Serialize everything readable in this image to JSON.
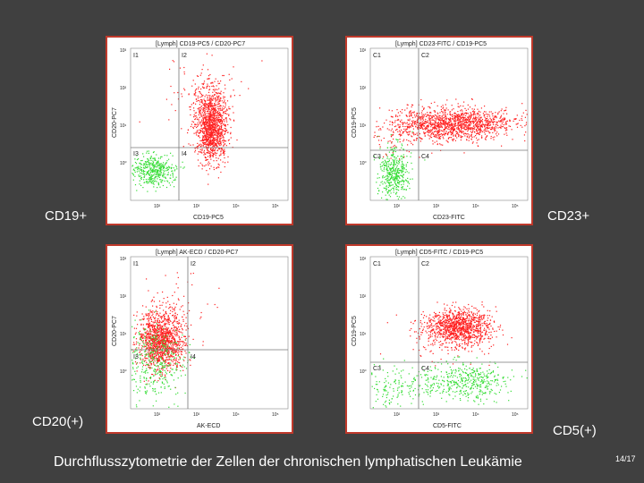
{
  "slide": {
    "caption": "Durchflusszytometrie der Zellen der chronischen lymphatischen Leukämie",
    "page_number": "14/17"
  },
  "colors": {
    "positive": "#ff2020",
    "negative": "#33dd33",
    "frame": "#c0392b",
    "background": "#404040"
  },
  "plots": [
    {
      "id": "cd19",
      "side_label": "CD19+",
      "header": "[Lymph] CD19-PC5 / CD20-PC7",
      "x_axis_label": "CD19-PC5",
      "y_axis_label": "CD20-PC7",
      "quadrants": [
        "I1",
        "I2",
        "I3",
        "I4"
      ],
      "x_ticks": [
        "10²",
        "10³",
        "10⁴",
        "10⁵"
      ],
      "y_ticks": [
        "10³",
        "10²",
        "10¹",
        "10⁰"
      ]
    },
    {
      "id": "cd23",
      "side_label": "CD23+",
      "header": "[Lymph] CD23-FITC / CD19-PC5",
      "x_axis_label": "CD23-FITC",
      "y_axis_label": "CD19-PC5",
      "quadrants": [
        "C1",
        "C2",
        "C3",
        "C4"
      ],
      "x_ticks": [
        "10²",
        "10³",
        "10⁴",
        "10⁵"
      ],
      "y_ticks": [
        "10³",
        "10²",
        "10¹",
        "10⁰"
      ]
    },
    {
      "id": "cd20",
      "side_label": "CD20(+)",
      "header": "[Lymph] AK-ECD / CD20-PC7",
      "x_axis_label": "AK-ECD",
      "y_axis_label": "CD20-PC7",
      "quadrants": [
        "I1",
        "I2",
        "I3",
        "I4"
      ],
      "x_ticks": [
        "10²",
        "10³",
        "10⁴",
        "10⁵"
      ],
      "y_ticks": [
        "10³",
        "10²",
        "10¹",
        "10⁰"
      ]
    },
    {
      "id": "cd5",
      "side_label": "CD5(+)",
      "header": "[Lymph] CD5-FITC / CD19-PC5",
      "x_axis_label": "CD5-FITC",
      "y_axis_label": "CD19-PC5",
      "quadrants": [
        "C1",
        "C2",
        "C3",
        "C4"
      ],
      "x_ticks": [
        "10²",
        "10³",
        "10⁴",
        "10⁵"
      ],
      "y_ticks": [
        "10³",
        "10²",
        "10¹",
        "10⁰"
      ]
    }
  ]
}
